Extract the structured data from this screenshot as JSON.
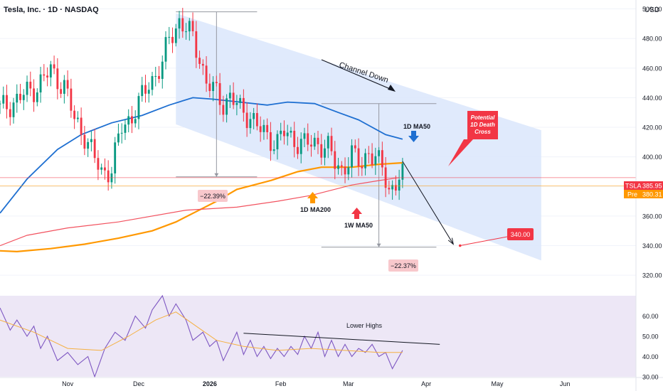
{
  "header": {
    "title": "Tesla, Inc. · 1D · NASDAQ",
    "currency": "USD"
  },
  "price_badges": [
    {
      "label": "TSLA",
      "value": "385.95",
      "color": "#f23645"
    },
    {
      "label": "Pre",
      "value": "380.31",
      "color": "#ff9800"
    }
  ],
  "colors": {
    "up": "#089981",
    "down": "#f23645",
    "ma50d": "#1e6fd1",
    "ma200d": "#ff9800",
    "ma50w": "#f2525f",
    "rsi": "#7e57c2",
    "rsi_ma": "#f5b041",
    "channel": "#dbe6fb",
    "rsi_band": "#ede7f6"
  },
  "annotations": {
    "channel": "Channel Down",
    "ma50d": "1D MA50",
    "ma200d": "1D MA200",
    "ma50w": "1W MA50",
    "death_cross": [
      "Potential",
      "1D Death",
      "Cross"
    ],
    "drop1": "−22.39%",
    "drop2": "−22.37%",
    "target": "340.00",
    "rsi_lower_highs": "Lower Highs"
  },
  "chart_data": [
    {
      "type": "candlestick",
      "title": "Tesla, Inc. · 1D · NASDAQ",
      "y_axis": {
        "ylim": [
          310,
          506
        ],
        "ticks": [
          320,
          340,
          360,
          380,
          400,
          420,
          440,
          460,
          480,
          500
        ],
        "side": "right"
      },
      "x_axis": {
        "tick_labels": [
          "Nov",
          "Dec",
          "2026",
          "Feb",
          "Mar",
          "Apr",
          "May",
          "Jun"
        ],
        "tick_index": [
          20,
          41,
          62,
          83,
          103,
          126,
          147,
          167
        ],
        "index_range": [
          0,
          188
        ]
      },
      "close_series": [
        [
          0,
          432
        ],
        [
          6,
          440
        ],
        [
          11,
          448
        ],
        [
          15,
          458
        ],
        [
          19,
          448
        ],
        [
          22,
          425
        ],
        [
          25,
          415
        ],
        [
          28,
          398
        ],
        [
          30,
          390
        ],
        [
          33,
          392
        ],
        [
          36,
          420
        ],
        [
          39,
          428
        ],
        [
          41,
          435
        ],
        [
          44,
          450
        ],
        [
          48,
          462
        ],
        [
          50,
          480
        ],
        [
          53,
          492
        ],
        [
          57,
          480
        ],
        [
          59,
          468
        ],
        [
          61,
          450
        ],
        [
          63,
          445
        ],
        [
          66,
          437
        ],
        [
          68,
          440
        ],
        [
          71,
          432
        ],
        [
          74,
          428
        ],
        [
          76,
          420
        ],
        [
          79,
          414
        ],
        [
          82,
          410
        ],
        [
          84,
          416
        ],
        [
          87,
          412
        ],
        [
          90,
          408
        ],
        [
          94,
          410
        ],
        [
          97,
          405
        ],
        [
          99,
          396
        ],
        [
          101,
          392
        ],
        [
          104,
          400
        ],
        [
          107,
          396
        ],
        [
          109,
          405
        ],
        [
          111,
          396
        ],
        [
          113,
          394
        ],
        [
          115,
          378
        ],
        [
          117,
          382
        ],
        [
          119,
          385.95
        ]
      ],
      "moving_averages": [
        {
          "name": "1D MA50",
          "values": [
            [
              0,
              362
            ],
            [
              8,
              385
            ],
            [
              17,
              405
            ],
            [
              24,
              415
            ],
            [
              33,
              423
            ],
            [
              42,
              428
            ],
            [
              50,
              435
            ],
            [
              57,
              440
            ],
            [
              63,
              439
            ],
            [
              71,
              437
            ],
            [
              79,
              435
            ],
            [
              85,
              437
            ],
            [
              93,
              436
            ],
            [
              100,
              430
            ],
            [
              106,
              425
            ],
            [
              114,
              415
            ],
            [
              119,
              412
            ]
          ]
        },
        {
          "name": "1D MA200",
          "values": [
            [
              0,
              336.5
            ],
            [
              5,
              336
            ],
            [
              15,
              338
            ],
            [
              25,
              341
            ],
            [
              35,
              345
            ],
            [
              45,
              350
            ],
            [
              52,
              356
            ],
            [
              58,
              363
            ],
            [
              64,
              370
            ],
            [
              70,
              378
            ],
            [
              80,
              384
            ],
            [
              88,
              390
            ],
            [
              95,
              393
            ],
            [
              104,
              393
            ],
            [
              112,
              395
            ],
            [
              119,
              396
            ]
          ]
        },
        {
          "name": "1W MA50",
          "values": [
            [
              0,
              340
            ],
            [
              8,
              347
            ],
            [
              20,
              352
            ],
            [
              35,
              356
            ],
            [
              55,
              364
            ],
            [
              70,
              366
            ],
            [
              82,
              370
            ],
            [
              92,
              374
            ],
            [
              104,
              381
            ],
            [
              112,
              384
            ],
            [
              118,
              386
            ]
          ]
        }
      ],
      "channel": {
        "upper": [
          [
            52,
            497
          ],
          [
            160,
            418
          ]
        ],
        "lower": [
          [
            52,
            422
          ],
          [
            160,
            330
          ]
        ]
      },
      "measure_boxes": [
        {
          "change": "−22.39%"
        },
        {
          "change": "−22.37%"
        }
      ],
      "projection": {
        "from": [
          119,
          397
        ],
        "to": [
          134,
          341
        ],
        "target": 340
      }
    },
    {
      "type": "line",
      "title": "",
      "y_axis": {
        "ylim": [
          30,
          70
        ],
        "ticks": [
          30,
          40,
          50,
          60
        ]
      },
      "series": [
        {
          "values": [
            [
              0,
              64
            ],
            [
              3,
              53
            ],
            [
              5,
              58
            ],
            [
              8,
              50
            ],
            [
              10,
              55
            ],
            [
              12,
              44
            ],
            [
              14,
              50
            ],
            [
              17,
              38
            ],
            [
              20,
              42
            ],
            [
              23,
              36
            ],
            [
              26,
              40
            ],
            [
              28,
              30
            ],
            [
              31,
              44
            ],
            [
              34,
              52
            ],
            [
              37,
              48
            ],
            [
              40,
              60
            ],
            [
              43,
              54
            ],
            [
              45,
              63
            ],
            [
              48,
              70
            ],
            [
              50,
              60
            ],
            [
              52,
              66
            ],
            [
              55,
              58
            ],
            [
              57,
              48
            ],
            [
              60,
              52
            ],
            [
              62,
              45
            ],
            [
              64,
              48
            ],
            [
              66,
              38
            ],
            [
              68,
              45
            ],
            [
              70,
              52
            ],
            [
              72,
              41
            ],
            [
              74,
              48
            ],
            [
              76,
              40
            ],
            [
              78,
              45
            ],
            [
              80,
              39
            ],
            [
              82,
              44
            ],
            [
              84,
              40
            ],
            [
              86,
              45
            ],
            [
              88,
              41
            ],
            [
              90,
              50
            ],
            [
              92,
              44
            ],
            [
              94,
              52
            ],
            [
              96,
              40
            ],
            [
              98,
              48
            ],
            [
              100,
              40
            ],
            [
              102,
              46
            ],
            [
              104,
              40
            ],
            [
              106,
              44
            ],
            [
              108,
              42
            ],
            [
              110,
              46
            ],
            [
              112,
              40
            ],
            [
              114,
              42
            ],
            [
              116,
              34
            ],
            [
              118,
              40
            ],
            [
              119,
              43
            ]
          ]
        },
        {
          "values": [
            [
              0,
              58
            ],
            [
              10,
              52
            ],
            [
              20,
              44
            ],
            [
              30,
              43
            ],
            [
              38,
              50
            ],
            [
              46,
              58
            ],
            [
              52,
              62
            ],
            [
              58,
              55
            ],
            [
              64,
              48
            ],
            [
              72,
              45
            ],
            [
              82,
              43
            ],
            [
              92,
              44
            ],
            [
              102,
              43
            ],
            [
              112,
              42
            ],
            [
              119,
              42
            ]
          ]
        }
      ],
      "trendline": {
        "from": [
          72,
          51.5
        ],
        "to": [
          130,
          46
        ]
      }
    }
  ]
}
